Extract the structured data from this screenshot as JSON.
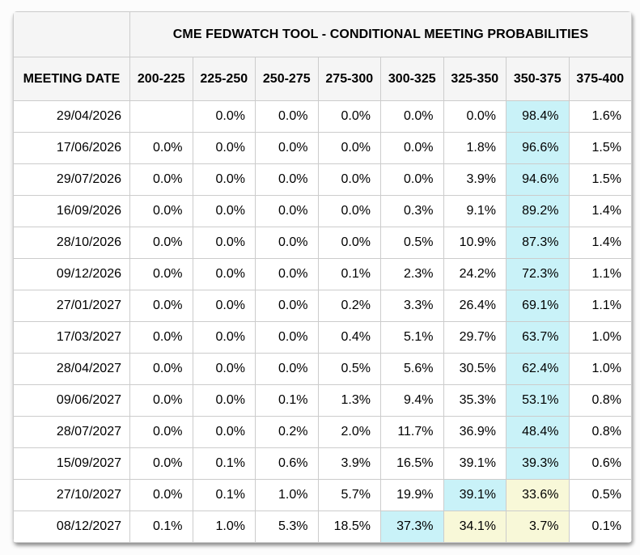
{
  "page": {
    "background": "#fcfcfc"
  },
  "table": {
    "title": "CME FEDWATCH TOOL - CONDITIONAL MEETING PROBABILITIES",
    "date_column_header": "MEETING DATE",
    "rate_range_headers": [
      "200-225",
      "225-250",
      "250-275",
      "275-300",
      "300-325",
      "325-350",
      "350-375",
      "375-400"
    ],
    "rows": [
      {
        "date": "29/04/2026",
        "values": [
          "",
          "0.0%",
          "0.0%",
          "0.0%",
          "0.0%",
          "0.0%",
          "98.4%",
          "1.6%"
        ],
        "highlights": [
          "",
          "",
          "",
          "",
          "",
          "",
          "cyan",
          ""
        ]
      },
      {
        "date": "17/06/2026",
        "values": [
          "0.0%",
          "0.0%",
          "0.0%",
          "0.0%",
          "0.0%",
          "1.8%",
          "96.6%",
          "1.5%"
        ],
        "highlights": [
          "",
          "",
          "",
          "",
          "",
          "",
          "cyan",
          ""
        ]
      },
      {
        "date": "29/07/2026",
        "values": [
          "0.0%",
          "0.0%",
          "0.0%",
          "0.0%",
          "0.0%",
          "3.9%",
          "94.6%",
          "1.5%"
        ],
        "highlights": [
          "",
          "",
          "",
          "",
          "",
          "",
          "cyan",
          ""
        ]
      },
      {
        "date": "16/09/2026",
        "values": [
          "0.0%",
          "0.0%",
          "0.0%",
          "0.0%",
          "0.3%",
          "9.1%",
          "89.2%",
          "1.4%"
        ],
        "highlights": [
          "",
          "",
          "",
          "",
          "",
          "",
          "cyan",
          ""
        ]
      },
      {
        "date": "28/10/2026",
        "values": [
          "0.0%",
          "0.0%",
          "0.0%",
          "0.0%",
          "0.5%",
          "10.9%",
          "87.3%",
          "1.4%"
        ],
        "highlights": [
          "",
          "",
          "",
          "",
          "",
          "",
          "cyan",
          ""
        ]
      },
      {
        "date": "09/12/2026",
        "values": [
          "0.0%",
          "0.0%",
          "0.0%",
          "0.1%",
          "2.3%",
          "24.2%",
          "72.3%",
          "1.1%"
        ],
        "highlights": [
          "",
          "",
          "",
          "",
          "",
          "",
          "cyan",
          ""
        ]
      },
      {
        "date": "27/01/2027",
        "values": [
          "0.0%",
          "0.0%",
          "0.0%",
          "0.2%",
          "3.3%",
          "26.4%",
          "69.1%",
          "1.1%"
        ],
        "highlights": [
          "",
          "",
          "",
          "",
          "",
          "",
          "cyan",
          ""
        ]
      },
      {
        "date": "17/03/2027",
        "values": [
          "0.0%",
          "0.0%",
          "0.0%",
          "0.4%",
          "5.1%",
          "29.7%",
          "63.7%",
          "1.0%"
        ],
        "highlights": [
          "",
          "",
          "",
          "",
          "",
          "",
          "cyan",
          ""
        ]
      },
      {
        "date": "28/04/2027",
        "values": [
          "0.0%",
          "0.0%",
          "0.0%",
          "0.5%",
          "5.6%",
          "30.5%",
          "62.4%",
          "1.0%"
        ],
        "highlights": [
          "",
          "",
          "",
          "",
          "",
          "",
          "cyan",
          ""
        ]
      },
      {
        "date": "09/06/2027",
        "values": [
          "0.0%",
          "0.0%",
          "0.1%",
          "1.3%",
          "9.4%",
          "35.3%",
          "53.1%",
          "0.8%"
        ],
        "highlights": [
          "",
          "",
          "",
          "",
          "",
          "",
          "cyan",
          ""
        ]
      },
      {
        "date": "28/07/2027",
        "values": [
          "0.0%",
          "0.0%",
          "0.2%",
          "2.0%",
          "11.7%",
          "36.9%",
          "48.4%",
          "0.8%"
        ],
        "highlights": [
          "",
          "",
          "",
          "",
          "",
          "",
          "cyan",
          ""
        ]
      },
      {
        "date": "15/09/2027",
        "values": [
          "0.0%",
          "0.1%",
          "0.6%",
          "3.9%",
          "16.5%",
          "39.1%",
          "39.3%",
          "0.6%"
        ],
        "highlights": [
          "",
          "",
          "",
          "",
          "",
          "",
          "cyan",
          ""
        ]
      },
      {
        "date": "27/10/2027",
        "values": [
          "0.0%",
          "0.1%",
          "1.0%",
          "5.7%",
          "19.9%",
          "39.1%",
          "33.6%",
          "0.5%"
        ],
        "highlights": [
          "",
          "",
          "",
          "",
          "",
          "cyan",
          "yellow",
          ""
        ]
      },
      {
        "date": "08/12/2027",
        "values": [
          "0.1%",
          "1.0%",
          "5.3%",
          "18.5%",
          "37.3%",
          "34.1%",
          "3.7%",
          "0.1%"
        ],
        "highlights": [
          "",
          "",
          "",
          "",
          "cyan",
          "yellow",
          "yellow",
          ""
        ]
      }
    ],
    "highlight_colors": {
      "cyan": "#c9f2f8",
      "yellow": "#f8f8d8"
    },
    "header_background": "#f5f5f5",
    "border_color": "#cccccc"
  }
}
